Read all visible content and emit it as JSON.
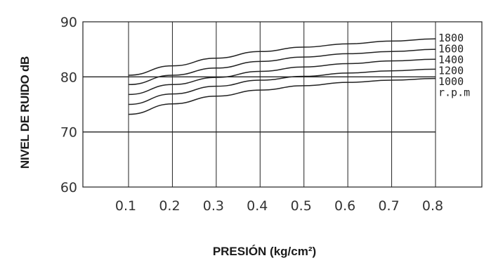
{
  "chart_data": {
    "type": "line",
    "xlabel": "PRESIÓN (kg/cm²)",
    "ylabel": "NIVEL DE RUIDO dB",
    "xlim": [
      0,
      0.8
    ],
    "ylim": [
      60,
      90
    ],
    "x_ticks": [
      "0.1",
      "0.2",
      "0.3",
      "0.4",
      "0.5",
      "0.6",
      "0.7",
      "0.8"
    ],
    "y_ticks": [
      "60",
      "70",
      "80",
      "90"
    ],
    "x": [
      0.1,
      0.2,
      0.3,
      0.4,
      0.5,
      0.6,
      0.7,
      0.8
    ],
    "legend_title": "r.p.m",
    "grid": true,
    "series": [
      {
        "name": "1800",
        "values": [
          80.3,
          82.0,
          83.4,
          84.6,
          85.4,
          86.0,
          86.5,
          86.9
        ]
      },
      {
        "name": "1600",
        "values": [
          78.6,
          80.3,
          81.6,
          82.8,
          83.6,
          84.2,
          84.6,
          85.0
        ]
      },
      {
        "name": "1400",
        "values": [
          76.8,
          78.6,
          79.9,
          81.0,
          81.8,
          82.4,
          82.9,
          83.2
        ]
      },
      {
        "name": "1200",
        "values": [
          75.0,
          76.9,
          78.3,
          79.4,
          80.1,
          80.7,
          81.1,
          81.4
        ]
      },
      {
        "name": "1000",
        "values": [
          73.2,
          75.1,
          76.5,
          77.6,
          78.4,
          79.0,
          79.4,
          79.7
        ]
      }
    ]
  }
}
